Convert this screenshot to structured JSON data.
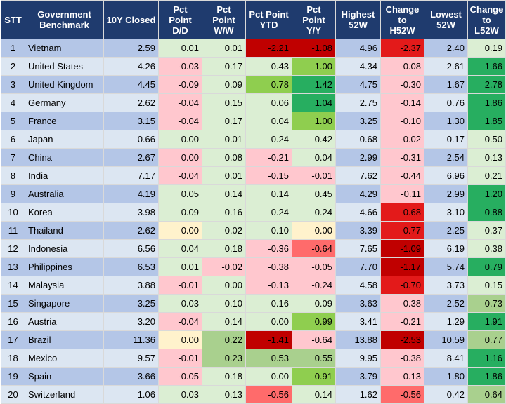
{
  "headers": [
    "STT",
    "Government\nBenchmark",
    "10Y Closed",
    "Pct\nPoint\nD/D",
    "Pct\nPoint\nW/W",
    "Pct Point\nYTD",
    "Pct\nPoint\nY/Y",
    "Highest\n52W",
    "Change\nto\nH52W",
    "Lowest\n52W",
    "Change\nto\nL52W"
  ],
  "colors": {
    "header_bg": "#1f3b6e",
    "row_band_dark": "#b4c6e7",
    "row_band_light": "#dce6f2",
    "cell_base": "#dbeed3",
    "cell_red_light": "#ffc7ce",
    "cell_red": "#ff6b6b",
    "cell_red_strong": "#e31a1a",
    "cell_red_dark": "#c00000",
    "cell_green_light": "#a9d08e",
    "cell_green": "#8fce4f",
    "cell_green_strong": "#27ae60",
    "cell_yellow": "#fff2cc"
  },
  "rows": [
    [
      "1",
      "Vietnam",
      "2.59",
      "0.01",
      "0.01",
      "-2.21",
      "-1.08",
      "4.96",
      "-2.37",
      "2.40",
      "0.19"
    ],
    [
      "2",
      "United States",
      "4.26",
      "-0.03",
      "0.17",
      "0.43",
      "1.00",
      "4.34",
      "-0.08",
      "2.61",
      "1.66"
    ],
    [
      "3",
      "United Kingdom",
      "4.45",
      "-0.09",
      "0.09",
      "0.78",
      "1.42",
      "4.75",
      "-0.30",
      "1.67",
      "2.78"
    ],
    [
      "4",
      "Germany",
      "2.62",
      "-0.04",
      "0.15",
      "0.06",
      "1.04",
      "2.75",
      "-0.14",
      "0.76",
      "1.86"
    ],
    [
      "5",
      "France",
      "3.15",
      "-0.04",
      "0.17",
      "0.04",
      "1.00",
      "3.25",
      "-0.10",
      "1.30",
      "1.85"
    ],
    [
      "6",
      "Japan",
      "0.66",
      "0.00",
      "0.01",
      "0.24",
      "0.42",
      "0.68",
      "-0.02",
      "0.17",
      "0.50"
    ],
    [
      "7",
      "China",
      "2.67",
      "0.00",
      "0.08",
      "-0.21",
      "0.04",
      "2.99",
      "-0.31",
      "2.54",
      "0.13"
    ],
    [
      "8",
      "India",
      "7.17",
      "-0.04",
      "0.01",
      "-0.15",
      "-0.01",
      "7.62",
      "-0.44",
      "6.96",
      "0.21"
    ],
    [
      "9",
      "Australia",
      "4.19",
      "0.05",
      "0.14",
      "0.14",
      "0.45",
      "4.29",
      "-0.11",
      "2.99",
      "1.20"
    ],
    [
      "10",
      "Korea",
      "3.98",
      "0.09",
      "0.16",
      "0.24",
      "0.24",
      "4.66",
      "-0.68",
      "3.10",
      "0.88"
    ],
    [
      "11",
      "Thailand",
      "2.62",
      "0.00",
      "0.02",
      "0.10",
      "0.00",
      "3.39",
      "-0.77",
      "2.25",
      "0.37"
    ],
    [
      "12",
      "Indonesia",
      "6.56",
      "0.04",
      "0.18",
      "-0.36",
      "-0.64",
      "7.65",
      "-1.09",
      "6.19",
      "0.38"
    ],
    [
      "13",
      "Philippines",
      "6.53",
      "0.01",
      "-0.02",
      "-0.38",
      "-0.05",
      "7.70",
      "-1.17",
      "5.74",
      "0.79"
    ],
    [
      "14",
      "Malaysia",
      "3.88",
      "-0.01",
      "0.00",
      "-0.13",
      "-0.24",
      "4.58",
      "-0.70",
      "3.73",
      "0.15"
    ],
    [
      "15",
      "Singapore",
      "3.25",
      "0.03",
      "0.10",
      "0.16",
      "0.09",
      "3.63",
      "-0.38",
      "2.52",
      "0.73"
    ],
    [
      "16",
      "Austria",
      "3.20",
      "-0.04",
      "0.14",
      "0.00",
      "0.99",
      "3.41",
      "-0.21",
      "1.29",
      "1.91"
    ],
    [
      "17",
      "Brazil",
      "11.36",
      "0.00",
      "0.22",
      "-1.41",
      "-0.64",
      "13.88",
      "-2.53",
      "10.59",
      "0.77"
    ],
    [
      "18",
      "Mexico",
      "9.57",
      "-0.01",
      "0.23",
      "0.53",
      "0.55",
      "9.95",
      "-0.38",
      "8.41",
      "1.16"
    ],
    [
      "19",
      "Spain",
      "3.66",
      "-0.05",
      "0.18",
      "0.00",
      "0.91",
      "3.79",
      "-0.13",
      "1.80",
      "1.86"
    ],
    [
      "20",
      "Switzerland",
      "1.06",
      "0.03",
      "0.13",
      "-0.56",
      "0.14",
      "1.62",
      "-0.56",
      "0.42",
      "0.64"
    ]
  ],
  "cell_colors": [
    [
      "b",
      "b",
      "b",
      "base",
      "base",
      "red_dark",
      "red_dark",
      "b",
      "red_strong",
      "b",
      "base"
    ],
    [
      "l",
      "l",
      "l",
      "red_light",
      "base",
      "base",
      "green",
      "l",
      "red_light",
      "l",
      "green_strong"
    ],
    [
      "b",
      "b",
      "b",
      "red_light",
      "base",
      "green",
      "green_strong",
      "b",
      "red_light",
      "b",
      "green_strong"
    ],
    [
      "l",
      "l",
      "l",
      "red_light",
      "base",
      "base",
      "green_strong",
      "l",
      "red_light",
      "l",
      "green_strong"
    ],
    [
      "b",
      "b",
      "b",
      "red_light",
      "base",
      "base",
      "green",
      "b",
      "red_light",
      "b",
      "green_strong"
    ],
    [
      "l",
      "l",
      "l",
      "base",
      "base",
      "base",
      "base",
      "l",
      "red_light",
      "l",
      "base"
    ],
    [
      "b",
      "b",
      "b",
      "red_light",
      "base",
      "red_light",
      "base",
      "b",
      "red_light",
      "b",
      "base"
    ],
    [
      "l",
      "l",
      "l",
      "red_light",
      "base",
      "red_light",
      "red_light",
      "l",
      "red_light",
      "l",
      "base"
    ],
    [
      "b",
      "b",
      "b",
      "base",
      "base",
      "base",
      "base",
      "b",
      "red_light",
      "b",
      "green_strong"
    ],
    [
      "l",
      "l",
      "l",
      "base",
      "base",
      "base",
      "base",
      "l",
      "red_strong",
      "l",
      "green_strong"
    ],
    [
      "b",
      "b",
      "b",
      "yellow",
      "base",
      "base",
      "yellow",
      "b",
      "red_strong",
      "b",
      "base"
    ],
    [
      "l",
      "l",
      "l",
      "base",
      "base",
      "red_light",
      "red",
      "l",
      "red_dark",
      "l",
      "base"
    ],
    [
      "b",
      "b",
      "b",
      "base",
      "red_light",
      "red_light",
      "red_light",
      "b",
      "red_dark",
      "b",
      "green_strong"
    ],
    [
      "l",
      "l",
      "l",
      "red_light",
      "base",
      "red_light",
      "red_light",
      "l",
      "red_strong",
      "l",
      "base"
    ],
    [
      "b",
      "b",
      "b",
      "base",
      "base",
      "base",
      "base",
      "b",
      "red_light",
      "b",
      "green_light"
    ],
    [
      "l",
      "l",
      "l",
      "red_light",
      "base",
      "base",
      "green",
      "l",
      "red_light",
      "l",
      "green_strong"
    ],
    [
      "b",
      "b",
      "b",
      "yellow",
      "green_light",
      "red_dark",
      "red_light",
      "b",
      "red_dark",
      "b",
      "green_light"
    ],
    [
      "l",
      "l",
      "l",
      "red_light",
      "green_light",
      "green_light",
      "green_light",
      "l",
      "red_light",
      "l",
      "green_strong"
    ],
    [
      "b",
      "b",
      "b",
      "red_light",
      "base",
      "base",
      "green",
      "b",
      "red_light",
      "b",
      "green_strong"
    ],
    [
      "l",
      "l",
      "l",
      "base",
      "base",
      "red",
      "base",
      "l",
      "red",
      "l",
      "green_light"
    ]
  ]
}
